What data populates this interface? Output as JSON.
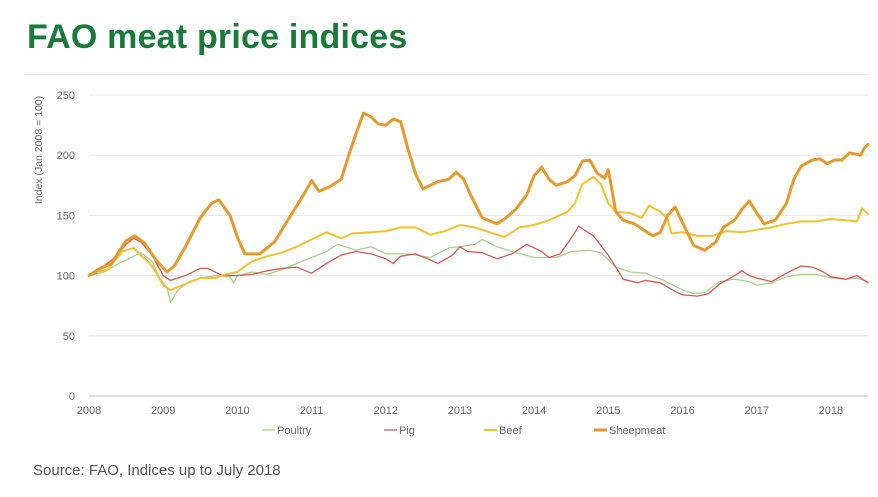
{
  "title": "FAO meat price indices",
  "source": "Source: FAO, Indices up to July 2018",
  "chart_data": {
    "type": "line",
    "title": "FAO meat price indices",
    "ylabel": "Index (Jan 2008 = 100)",
    "xlabel": "",
    "xlim": [
      2008,
      2018.5
    ],
    "ylim": [
      0,
      250
    ],
    "yticks": [
      0,
      50,
      100,
      150,
      200,
      250
    ],
    "xticks": [
      "2008",
      "2009",
      "2010",
      "2011",
      "2012",
      "2013",
      "2014",
      "2015",
      "2016",
      "2017",
      "2018"
    ],
    "grid": "horizontal",
    "legend_position": "bottom",
    "series": [
      {
        "name": "Poultry",
        "color": "#a9d08e",
        "width": 1.3,
        "points": [
          [
            2008,
            100
          ],
          [
            2008.2,
            103
          ],
          [
            2008.4,
            110
          ],
          [
            2008.6,
            116
          ],
          [
            2008.7,
            119
          ],
          [
            2008.85,
            112
          ],
          [
            2008.95,
            98
          ],
          [
            2009.05,
            90
          ],
          [
            2009.1,
            78
          ],
          [
            2009.2,
            88
          ],
          [
            2009.35,
            95
          ],
          [
            2009.5,
            98
          ],
          [
            2009.7,
            100
          ],
          [
            2009.9,
            99
          ],
          [
            2009.95,
            94
          ],
          [
            2010.0,
            100
          ],
          [
            2010.2,
            103
          ],
          [
            2010.4,
            101
          ],
          [
            2010.6,
            105
          ],
          [
            2010.8,
            110
          ],
          [
            2011.0,
            115
          ],
          [
            2011.2,
            120
          ],
          [
            2011.35,
            126
          ],
          [
            2011.6,
            121
          ],
          [
            2011.8,
            124
          ],
          [
            2012.0,
            118
          ],
          [
            2012.3,
            118
          ],
          [
            2012.6,
            115
          ],
          [
            2012.85,
            123
          ],
          [
            2013.0,
            124
          ],
          [
            2013.2,
            126
          ],
          [
            2013.3,
            130
          ],
          [
            2013.5,
            124
          ],
          [
            2013.7,
            120
          ],
          [
            2014.0,
            115
          ],
          [
            2014.3,
            115
          ],
          [
            2014.5,
            120
          ],
          [
            2014.75,
            121
          ],
          [
            2014.9,
            119
          ],
          [
            2015.1,
            107
          ],
          [
            2015.3,
            103
          ],
          [
            2015.5,
            102
          ],
          [
            2015.75,
            96
          ],
          [
            2016.0,
            88
          ],
          [
            2016.15,
            85
          ],
          [
            2016.3,
            86
          ],
          [
            2016.5,
            95
          ],
          [
            2016.7,
            97
          ],
          [
            2016.9,
            95
          ],
          [
            2017.0,
            92
          ],
          [
            2017.2,
            94
          ],
          [
            2017.4,
            99
          ],
          [
            2017.6,
            101
          ],
          [
            2017.8,
            101
          ],
          [
            2018.0,
            98
          ],
          [
            2018.2,
            97
          ],
          [
            2018.35,
            98
          ],
          [
            2018.5,
            95
          ]
        ]
      },
      {
        "name": "Pig",
        "color": "#d05a5a",
        "width": 1.3,
        "points": [
          [
            2008,
            100
          ],
          [
            2008.1,
            102
          ],
          [
            2008.2,
            108
          ],
          [
            2008.35,
            115
          ],
          [
            2008.5,
            126
          ],
          [
            2008.6,
            131
          ],
          [
            2008.7,
            128
          ],
          [
            2008.85,
            117
          ],
          [
            2009.0,
            100
          ],
          [
            2009.1,
            96
          ],
          [
            2009.3,
            100
          ],
          [
            2009.5,
            106
          ],
          [
            2009.6,
            106
          ],
          [
            2009.8,
            100
          ],
          [
            2010.0,
            100
          ],
          [
            2010.2,
            101
          ],
          [
            2010.4,
            104
          ],
          [
            2010.6,
            106
          ],
          [
            2010.8,
            107
          ],
          [
            2011.0,
            102
          ],
          [
            2011.2,
            110
          ],
          [
            2011.4,
            117
          ],
          [
            2011.6,
            120
          ],
          [
            2011.8,
            118
          ],
          [
            2012.0,
            114
          ],
          [
            2012.1,
            110
          ],
          [
            2012.2,
            116
          ],
          [
            2012.4,
            118
          ],
          [
            2012.6,
            113
          ],
          [
            2012.7,
            110
          ],
          [
            2012.9,
            117
          ],
          [
            2013.0,
            124
          ],
          [
            2013.1,
            120
          ],
          [
            2013.3,
            119
          ],
          [
            2013.5,
            114
          ],
          [
            2013.7,
            118
          ],
          [
            2013.9,
            126
          ],
          [
            2014.1,
            120
          ],
          [
            2014.2,
            115
          ],
          [
            2014.35,
            118
          ],
          [
            2014.5,
            131
          ],
          [
            2014.6,
            141
          ],
          [
            2014.8,
            133
          ],
          [
            2015.0,
            117
          ],
          [
            2015.1,
            107
          ],
          [
            2015.2,
            97
          ],
          [
            2015.4,
            94
          ],
          [
            2015.5,
            96
          ],
          [
            2015.7,
            94
          ],
          [
            2015.9,
            87
          ],
          [
            2016.0,
            84
          ],
          [
            2016.2,
            83
          ],
          [
            2016.35,
            85
          ],
          [
            2016.5,
            93
          ],
          [
            2016.7,
            100
          ],
          [
            2016.8,
            104
          ],
          [
            2016.9,
            100
          ],
          [
            2017.0,
            98
          ],
          [
            2017.2,
            95
          ],
          [
            2017.4,
            102
          ],
          [
            2017.6,
            108
          ],
          [
            2017.75,
            107
          ],
          [
            2017.9,
            103
          ],
          [
            2018.0,
            99
          ],
          [
            2018.2,
            97
          ],
          [
            2018.35,
            100
          ],
          [
            2018.5,
            94
          ]
        ]
      },
      {
        "name": "Beef",
        "color": "#f2c12e",
        "width": 2.0,
        "points": [
          [
            2008,
            100
          ],
          [
            2008.1,
            103
          ],
          [
            2008.25,
            105
          ],
          [
            2008.45,
            120
          ],
          [
            2008.6,
            123
          ],
          [
            2008.7,
            117
          ],
          [
            2008.85,
            108
          ],
          [
            2009.0,
            92
          ],
          [
            2009.1,
            88
          ],
          [
            2009.3,
            93
          ],
          [
            2009.5,
            98
          ],
          [
            2009.7,
            98
          ],
          [
            2009.85,
            101
          ],
          [
            2010.0,
            103
          ],
          [
            2010.2,
            112
          ],
          [
            2010.4,
            116
          ],
          [
            2010.6,
            119
          ],
          [
            2010.8,
            124
          ],
          [
            2011.0,
            130
          ],
          [
            2011.2,
            136
          ],
          [
            2011.4,
            131
          ],
          [
            2011.55,
            135
          ],
          [
            2011.8,
            136
          ],
          [
            2012.0,
            137
          ],
          [
            2012.2,
            140
          ],
          [
            2012.4,
            140
          ],
          [
            2012.6,
            134
          ],
          [
            2012.8,
            137
          ],
          [
            2013.0,
            142
          ],
          [
            2013.2,
            140
          ],
          [
            2013.4,
            136
          ],
          [
            2013.6,
            132
          ],
          [
            2013.8,
            140
          ],
          [
            2014.0,
            142
          ],
          [
            2014.2,
            146
          ],
          [
            2014.45,
            153
          ],
          [
            2014.55,
            160
          ],
          [
            2014.65,
            176
          ],
          [
            2014.8,
            182
          ],
          [
            2014.9,
            176
          ],
          [
            2015.0,
            160
          ],
          [
            2015.1,
            153
          ],
          [
            2015.3,
            152
          ],
          [
            2015.45,
            148
          ],
          [
            2015.55,
            158
          ],
          [
            2015.7,
            153
          ],
          [
            2015.8,
            147
          ],
          [
            2015.85,
            135
          ],
          [
            2016.0,
            136
          ],
          [
            2016.2,
            133
          ],
          [
            2016.4,
            133
          ],
          [
            2016.6,
            137
          ],
          [
            2016.8,
            136
          ],
          [
            2017.0,
            138
          ],
          [
            2017.2,
            140
          ],
          [
            2017.4,
            143
          ],
          [
            2017.6,
            145
          ],
          [
            2017.8,
            145
          ],
          [
            2018.0,
            147
          ],
          [
            2018.2,
            146
          ],
          [
            2018.35,
            145
          ],
          [
            2018.42,
            156
          ],
          [
            2018.5,
            151
          ]
        ]
      },
      {
        "name": "Sheepmeat",
        "color": "#e39a2f",
        "width": 3.0,
        "points": [
          [
            2008,
            100
          ],
          [
            2008.15,
            106
          ],
          [
            2008.3,
            110
          ],
          [
            2008.5,
            129
          ],
          [
            2008.62,
            133
          ],
          [
            2008.75,
            127
          ],
          [
            2008.9,
            113
          ],
          [
            2009.05,
            103
          ],
          [
            2009.15,
            108
          ],
          [
            2009.3,
            124
          ],
          [
            2009.5,
            148
          ],
          [
            2009.65,
            160
          ],
          [
            2009.75,
            163
          ],
          [
            2009.9,
            150
          ],
          [
            2010.0,
            132
          ],
          [
            2010.1,
            118
          ],
          [
            2010.3,
            118
          ],
          [
            2010.5,
            128
          ],
          [
            2010.7,
            148
          ],
          [
            2010.9,
            168
          ],
          [
            2011.0,
            179
          ],
          [
            2011.1,
            170
          ],
          [
            2011.25,
            174
          ],
          [
            2011.4,
            180
          ],
          [
            2011.5,
            200
          ],
          [
            2011.6,
            218
          ],
          [
            2011.7,
            235
          ],
          [
            2011.8,
            232
          ],
          [
            2011.9,
            226
          ],
          [
            2012.0,
            225
          ],
          [
            2012.1,
            230
          ],
          [
            2012.2,
            228
          ],
          [
            2012.3,
            205
          ],
          [
            2012.4,
            185
          ],
          [
            2012.5,
            172
          ],
          [
            2012.6,
            175
          ],
          [
            2012.7,
            178
          ],
          [
            2012.85,
            180
          ],
          [
            2012.95,
            186
          ],
          [
            2013.05,
            180
          ],
          [
            2013.15,
            166
          ],
          [
            2013.3,
            148
          ],
          [
            2013.5,
            143
          ],
          [
            2013.6,
            147
          ],
          [
            2013.75,
            155
          ],
          [
            2013.9,
            167
          ],
          [
            2014.0,
            183
          ],
          [
            2014.1,
            190
          ],
          [
            2014.2,
            180
          ],
          [
            2014.3,
            175
          ],
          [
            2014.45,
            178
          ],
          [
            2014.55,
            183
          ],
          [
            2014.65,
            195
          ],
          [
            2014.75,
            196
          ],
          [
            2014.85,
            185
          ],
          [
            2014.95,
            181
          ],
          [
            2015.0,
            188
          ],
          [
            2015.1,
            153
          ],
          [
            2015.2,
            146
          ],
          [
            2015.35,
            143
          ],
          [
            2015.5,
            137
          ],
          [
            2015.6,
            133
          ],
          [
            2015.7,
            136
          ],
          [
            2015.8,
            150
          ],
          [
            2015.9,
            157
          ],
          [
            2016.0,
            144
          ],
          [
            2016.15,
            125
          ],
          [
            2016.3,
            121
          ],
          [
            2016.45,
            128
          ],
          [
            2016.55,
            140
          ],
          [
            2016.7,
            146
          ],
          [
            2016.8,
            155
          ],
          [
            2016.9,
            162
          ],
          [
            2017.0,
            152
          ],
          [
            2017.1,
            143
          ],
          [
            2017.25,
            146
          ],
          [
            2017.4,
            160
          ],
          [
            2017.5,
            180
          ],
          [
            2017.6,
            191
          ],
          [
            2017.75,
            196
          ],
          [
            2017.85,
            197
          ],
          [
            2017.95,
            193
          ],
          [
            2018.05,
            196
          ],
          [
            2018.15,
            196
          ],
          [
            2018.25,
            202
          ],
          [
            2018.4,
            200
          ],
          [
            2018.45,
            206
          ],
          [
            2018.5,
            209
          ]
        ]
      }
    ]
  }
}
